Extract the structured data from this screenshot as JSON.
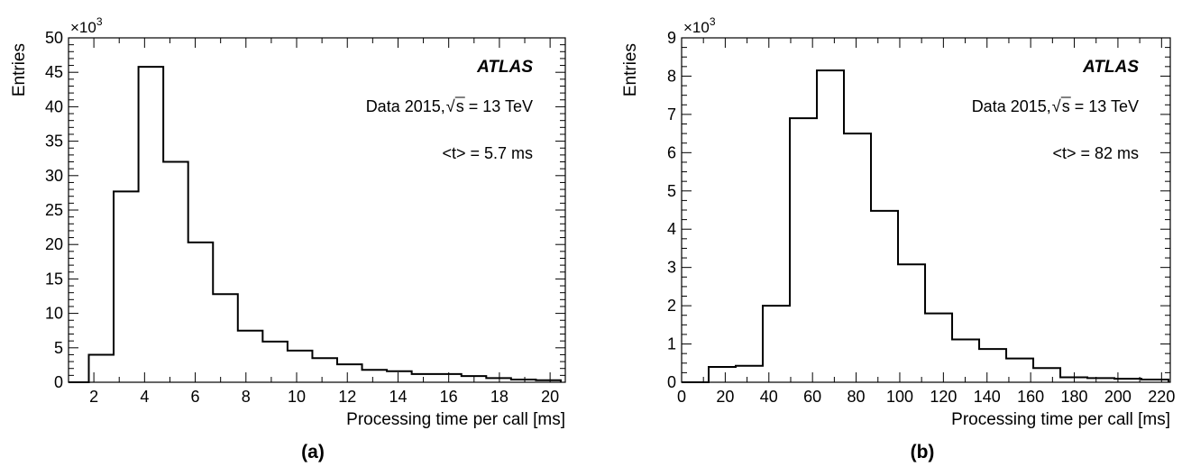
{
  "chart_data": [
    {
      "type": "bar",
      "histogram": true,
      "panel_label": "(a)",
      "xlabel": "Processing time per call [ms]",
      "ylabel": "Entries",
      "y_multiplier": "×10",
      "y_multiplier_exp": "3",
      "xlim": [
        1,
        20.6
      ],
      "ylim": [
        0,
        50
      ],
      "xticks": [
        2,
        4,
        6,
        8,
        10,
        12,
        14,
        16,
        18,
        20
      ],
      "yticks": [
        0,
        5,
        10,
        15,
        20,
        25,
        30,
        35,
        40,
        45,
        50
      ],
      "bin_edges": [
        1.8,
        2.78,
        3.76,
        4.74,
        5.72,
        6.7,
        7.68,
        8.66,
        9.64,
        10.62,
        11.6,
        12.58,
        13.56,
        14.54,
        15.52,
        16.5,
        17.48,
        18.46,
        19.44,
        20.42
      ],
      "values": [
        4.0,
        27.7,
        45.8,
        32.0,
        20.3,
        12.8,
        7.5,
        5.9,
        4.6,
        3.5,
        2.6,
        1.8,
        1.6,
        1.2,
        1.2,
        0.9,
        0.6,
        0.4,
        0.3
      ],
      "experiment": "ATLAS",
      "dataset_prefix": "Data 2015, ",
      "dataset_suffix": "s = 13 TeV",
      "mean_text": "<t> = 5.7 ms"
    },
    {
      "type": "bar",
      "histogram": true,
      "panel_label": "(b)",
      "xlabel": "Processing time per call [ms]",
      "ylabel": "Entries",
      "y_multiplier": "×10",
      "y_multiplier_exp": "3",
      "xlim": [
        0,
        224
      ],
      "ylim": [
        0,
        9
      ],
      "xticks": [
        0,
        20,
        40,
        60,
        80,
        100,
        120,
        140,
        160,
        180,
        200,
        220
      ],
      "yticks": [
        0,
        1,
        2,
        3,
        4,
        5,
        6,
        7,
        8,
        9
      ],
      "bin_edges": [
        0,
        12.4,
        24.8,
        37.2,
        49.6,
        62,
        74.4,
        86.8,
        99.2,
        111.6,
        124,
        136.4,
        148.8,
        161.2,
        173.6,
        186,
        198.4,
        210.8,
        223.2
      ],
      "values": [
        0.0,
        0.4,
        0.43,
        2.0,
        6.9,
        8.15,
        6.5,
        4.48,
        3.08,
        1.8,
        1.12,
        0.87,
        0.62,
        0.37,
        0.13,
        0.11,
        0.09,
        0.07
      ],
      "experiment": "ATLAS",
      "dataset_prefix": "Data 2015, ",
      "dataset_suffix": "s = 13 TeV",
      "mean_text": "<t> = 82 ms"
    }
  ]
}
